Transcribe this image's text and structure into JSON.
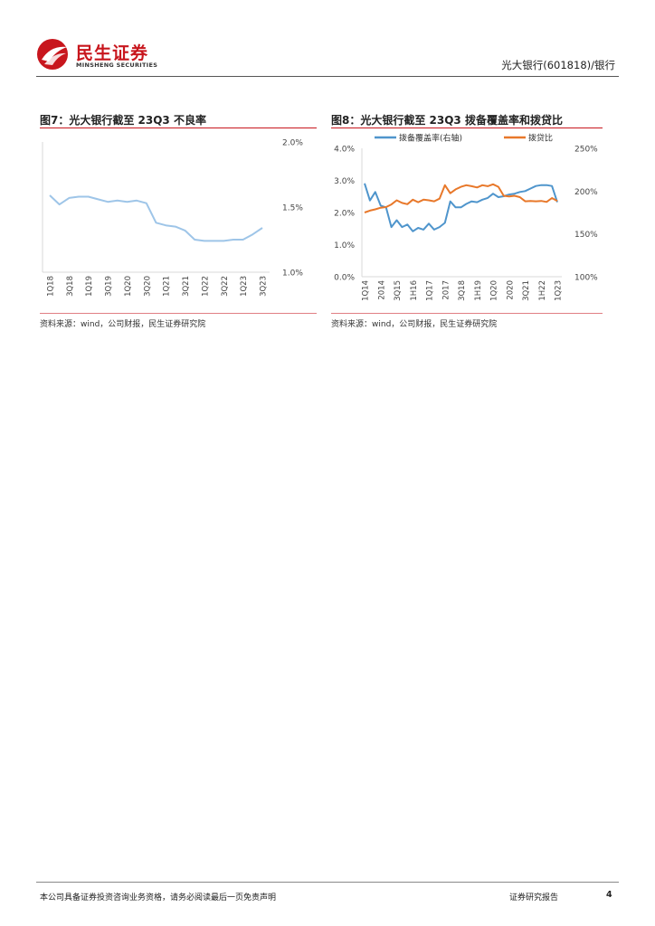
{
  "header": {
    "logo_cn": "民生证券",
    "logo_en": "MINSHENG SECURITIES",
    "right_text": "光大银行(601818)/银行"
  },
  "figure7": {
    "title": "图7：光大银行截至 23Q3 不良率",
    "source": "资料来源：wind，公司财报，民生证券研究院"
  },
  "figure8": {
    "title": "图8：光大银行截至 23Q3 拨备覆盖率和拨贷比",
    "source": "资料来源：wind，公司财报，民生证券研究院"
  },
  "chart_data": [
    {
      "type": "line",
      "title": "光大银行截至 23Q3 不良率",
      "x": [
        "1Q18",
        "2Q18",
        "3Q18",
        "4Q18",
        "1Q19",
        "2Q19",
        "3Q19",
        "4Q19",
        "1Q20",
        "2Q20",
        "3Q20",
        "4Q20",
        "1Q21",
        "2Q21",
        "3Q21",
        "4Q21",
        "1Q22",
        "2Q22",
        "3Q22",
        "4Q22",
        "1Q23",
        "2Q23",
        "3Q23"
      ],
      "x_tick_labels": [
        "1Q18",
        "3Q18",
        "1Q19",
        "3Q19",
        "1Q20",
        "3Q20",
        "1Q21",
        "3Q21",
        "1Q22",
        "3Q22",
        "1Q23",
        "3Q23"
      ],
      "series": [
        {
          "name": "不良率",
          "color": "#9ec5e8",
          "values": [
            1.59,
            1.52,
            1.57,
            1.58,
            1.58,
            1.56,
            1.54,
            1.55,
            1.54,
            1.55,
            1.53,
            1.38,
            1.36,
            1.35,
            1.32,
            1.25,
            1.24,
            1.24,
            1.24,
            1.25,
            1.25,
            1.29,
            1.34
          ]
        }
      ],
      "y_axis": {
        "side": "right",
        "ylim": [
          1.0,
          2.0
        ],
        "ticks": [
          "1.0%",
          "1.5%",
          "2.0%"
        ]
      },
      "grid": false
    },
    {
      "type": "line",
      "title": "光大银行截至 23Q3 拨备覆盖率和拨贷比",
      "legend": [
        "拨备覆盖率(右轴)",
        "拨贷比"
      ],
      "x_tick_labels": [
        "1Q14",
        "2014",
        "3Q15",
        "1H16",
        "1Q17",
        "2017",
        "3Q18",
        "1H19",
        "1Q20",
        "2020",
        "3Q21",
        "1H22",
        "1Q23"
      ],
      "series": [
        {
          "name": "拨备覆盖率(右轴)",
          "axis": "right",
          "color": "#4f95cc",
          "values": [
            209,
            189,
            199,
            183,
            181,
            158,
            166,
            158,
            161,
            153,
            157,
            155,
            162,
            155,
            158,
            163,
            188,
            181,
            181,
            185,
            188,
            187,
            190,
            192,
            197,
            193,
            194,
            196,
            197,
            199,
            200,
            203,
            206,
            207,
            207,
            206,
            187
          ]
        },
        {
          "name": "拨贷比",
          "axis": "left",
          "color": "#e8782a",
          "values": [
            2.0,
            2.06,
            2.1,
            2.15,
            2.17,
            2.25,
            2.38,
            2.3,
            2.26,
            2.4,
            2.32,
            2.4,
            2.38,
            2.35,
            2.43,
            2.85,
            2.6,
            2.72,
            2.8,
            2.85,
            2.82,
            2.78,
            2.85,
            2.82,
            2.88,
            2.8,
            2.52,
            2.5,
            2.52,
            2.48,
            2.35,
            2.36,
            2.35,
            2.36,
            2.33,
            2.45,
            2.36
          ]
        }
      ],
      "y_axis_left": {
        "ylim": [
          0.0,
          4.0
        ],
        "ticks": [
          "0.0%",
          "1.0%",
          "2.0%",
          "3.0%",
          "4.0%"
        ]
      },
      "y_axis_right": {
        "ylim": [
          100,
          250
        ],
        "ticks": [
          "100%",
          "150%",
          "200%",
          "250%"
        ]
      },
      "grid": false
    }
  ],
  "footer": {
    "disclaimer": "本公司具备证券投资咨询业务资格，请务必阅读最后一页免责声明",
    "doc_type": "证券研究报告",
    "page": "4"
  }
}
